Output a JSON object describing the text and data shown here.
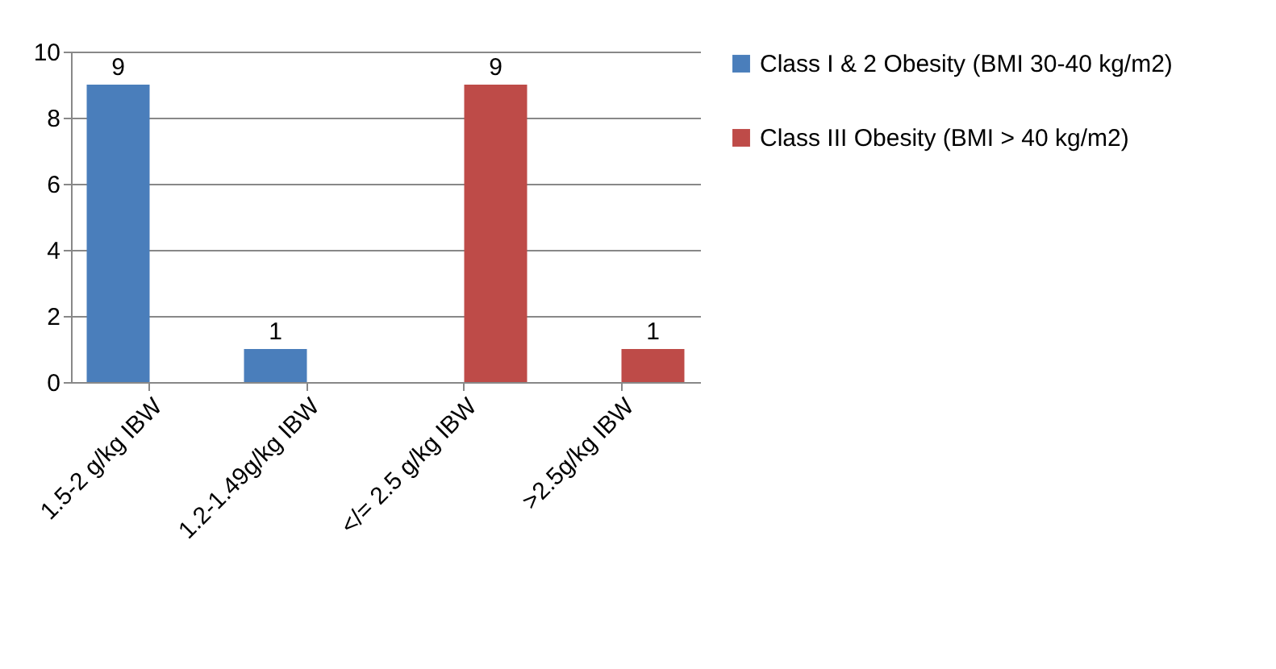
{
  "chart_data": {
    "type": "bar",
    "categories": [
      "1.5-2 g/kg IBW",
      "1.2-1.49g/kg IBW",
      "</= 2.5 g/kg IBW",
      ">2.5g/kg IBW"
    ],
    "series": [
      {
        "name": "Class I & 2 Obesity (BMI 30-40 kg/m2)",
        "color": "#4a7ebb",
        "values": [
          9,
          1,
          null,
          null
        ]
      },
      {
        "name": "Class III Obesity (BMI > 40 kg/m2)",
        "color": "#be4b48",
        "values": [
          null,
          null,
          9,
          1
        ]
      }
    ],
    "ylim": [
      0,
      10
    ],
    "yticks": [
      0,
      2,
      4,
      6,
      8,
      10
    ],
    "grid": "y",
    "legend": "right",
    "data_labels": true
  }
}
